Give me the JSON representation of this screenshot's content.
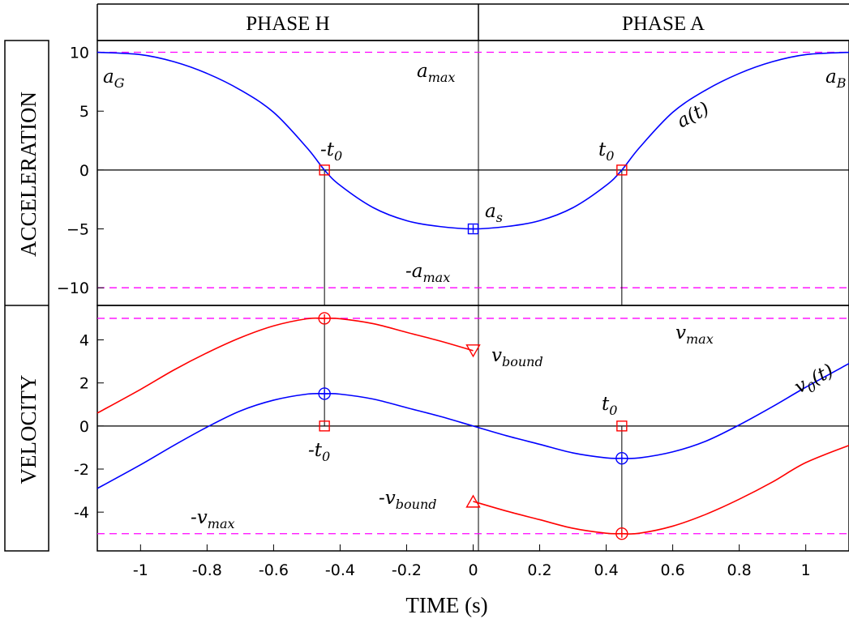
{
  "header": {
    "phase_left": "PHASE H",
    "phase_right": "PHASE A",
    "row_top": "ACCELERATION",
    "row_bottom": "VELOCITY",
    "x_title": "TIME (s)"
  },
  "chart_data": [
    {
      "type": "line",
      "panel": "acceleration",
      "xlim": [
        -1.13,
        1.13
      ],
      "ylim": [
        -11.5,
        11
      ],
      "xticks": [
        "-1",
        "-0.8",
        "-0.6",
        "-0.4",
        "-0.2",
        "0",
        "0.2",
        "0.4",
        "0.6",
        "0.8",
        "1"
      ],
      "xtick_values": [
        -1,
        -0.8,
        -0.6,
        -0.4,
        -0.2,
        0,
        0.2,
        0.4,
        0.6,
        0.8,
        1
      ],
      "yticks": [
        "10",
        "5",
        "0",
        "−5",
        "−10"
      ],
      "ytick_values": [
        10,
        5,
        0,
        -5,
        -10
      ],
      "limits": [
        10,
        -10
      ],
      "series": [
        {
          "color": "#0000ff",
          "x": [
            -1.13,
            -1.0,
            -0.9,
            -0.8,
            -0.7,
            -0.6,
            -0.5,
            -0.447,
            -0.4,
            -0.3,
            -0.2,
            -0.1,
            0.0,
            0.1,
            0.2,
            0.3,
            0.4,
            0.447,
            0.5,
            0.6,
            0.7,
            0.8,
            0.9,
            1.0,
            1.13
          ],
          "y": [
            10.0,
            9.8,
            9.2,
            8.2,
            6.8,
            4.9,
            1.9,
            0.0,
            -1.3,
            -3.2,
            -4.3,
            -4.8,
            -5.0,
            -4.8,
            -4.3,
            -3.2,
            -1.3,
            0.0,
            1.9,
            4.9,
            6.8,
            8.2,
            9.2,
            9.8,
            10.0
          ]
        }
      ],
      "markers": [
        {
          "x": -0.447,
          "y": 0,
          "shape": "square",
          "color": "#ff0000"
        },
        {
          "x": 0.447,
          "y": 0,
          "shape": "square",
          "color": "#ff0000"
        },
        {
          "x": 0,
          "y": -5,
          "shape": "square-plus",
          "color": "#0000ff"
        }
      ],
      "annotations": {
        "a_g": {
          "base": "a",
          "sub": "G"
        },
        "a_max": {
          "base": "a",
          "sub": "max"
        },
        "a_b": {
          "base": "a",
          "sub": "B"
        },
        "a_t": {
          "base": "a(t)",
          "sub": ""
        },
        "neg_t0": {
          "base": "-t",
          "sub": "0"
        },
        "t0": {
          "base": "t",
          "sub": "0"
        },
        "a_s": {
          "base": "a",
          "sub": "s"
        },
        "neg_a_max": {
          "base": "-a",
          "sub": "max"
        }
      }
    },
    {
      "type": "line",
      "panel": "velocity",
      "xlim": [
        -1.13,
        1.13
      ],
      "ylim": [
        -5.8,
        5.6
      ],
      "xticks": [
        "-1",
        "-0.8",
        "-0.6",
        "-0.4",
        "-0.2",
        "0",
        "0.2",
        "0.4",
        "0.6",
        "0.8",
        "1"
      ],
      "xtick_values": [
        -1,
        -0.8,
        -0.6,
        -0.4,
        -0.2,
        0,
        0.2,
        0.4,
        0.6,
        0.8,
        1
      ],
      "yticks": [
        "4",
        "2",
        "0",
        "-2",
        "-4"
      ],
      "ytick_values": [
        4,
        2,
        0,
        -2,
        -4
      ],
      "limits": [
        5,
        -5
      ],
      "series": [
        {
          "color": "#0000ff",
          "x": [
            -1.13,
            -1.0,
            -0.9,
            -0.8,
            -0.7,
            -0.6,
            -0.5,
            -0.447,
            -0.4,
            -0.3,
            -0.2,
            -0.1,
            0.0,
            0.1,
            0.2,
            0.3,
            0.4,
            0.447,
            0.5,
            0.6,
            0.7,
            0.8,
            0.9,
            1.0,
            1.13
          ],
          "y": [
            -2.9,
            -1.8,
            -0.9,
            -0.05,
            0.7,
            1.2,
            1.48,
            1.5,
            1.48,
            1.25,
            0.85,
            0.45,
            0.0,
            -0.45,
            -0.85,
            -1.25,
            -1.48,
            -1.5,
            -1.48,
            -1.2,
            -0.7,
            0.05,
            0.9,
            1.8,
            2.9
          ]
        },
        {
          "color": "#ff0000",
          "x": [
            -1.13,
            -1.0,
            -0.9,
            -0.8,
            -0.7,
            -0.6,
            -0.5,
            -0.447,
            -0.4,
            -0.3,
            -0.2,
            -0.1,
            0.0
          ],
          "y": [
            0.6,
            1.7,
            2.6,
            3.4,
            4.1,
            4.65,
            4.98,
            5.0,
            4.98,
            4.75,
            4.35,
            3.95,
            3.5
          ]
        },
        {
          "color": "#ff0000",
          "x": [
            0.0,
            0.1,
            0.2,
            0.3,
            0.4,
            0.447,
            0.5,
            0.6,
            0.7,
            0.8,
            0.9,
            1.0,
            1.13
          ],
          "y": [
            -3.5,
            -3.95,
            -4.35,
            -4.75,
            -4.98,
            -5.0,
            -4.98,
            -4.65,
            -4.1,
            -3.4,
            -2.6,
            -1.7,
            -0.9
          ]
        }
      ],
      "markers": [
        {
          "x": -0.447,
          "y": 5.0,
          "shape": "circle-plus",
          "color": "#ff0000"
        },
        {
          "x": -0.447,
          "y": 1.5,
          "shape": "circle-plus",
          "color": "#0000ff"
        },
        {
          "x": -0.447,
          "y": 0,
          "shape": "square",
          "color": "#ff0000"
        },
        {
          "x": 0,
          "y": 3.5,
          "shape": "triangle-down",
          "color": "#ff0000"
        },
        {
          "x": 0,
          "y": -3.5,
          "shape": "triangle-up",
          "color": "#ff0000"
        },
        {
          "x": 0.447,
          "y": 0,
          "shape": "square",
          "color": "#ff0000"
        },
        {
          "x": 0.447,
          "y": -1.5,
          "shape": "circle-plus",
          "color": "#0000ff"
        },
        {
          "x": 0.447,
          "y": -5.0,
          "shape": "circle-plus",
          "color": "#ff0000"
        }
      ],
      "annotations": {
        "v_bound": {
          "base": "v",
          "sub": "bound"
        },
        "v_max": {
          "base": "v",
          "sub": "max"
        },
        "v0_t": {
          "base": "v",
          "sub": "0",
          "tail": "(t)"
        },
        "t0": {
          "base": "t",
          "sub": "0"
        },
        "neg_t0": {
          "base": "-t",
          "sub": "0"
        },
        "neg_v_bound": {
          "base": "-v",
          "sub": "bound"
        },
        "neg_v_max": {
          "base": "-v",
          "sub": "max"
        }
      }
    }
  ],
  "colors": {
    "blue": "#0000ff",
    "red": "#ff0000",
    "magenta": "#ff00ff"
  }
}
